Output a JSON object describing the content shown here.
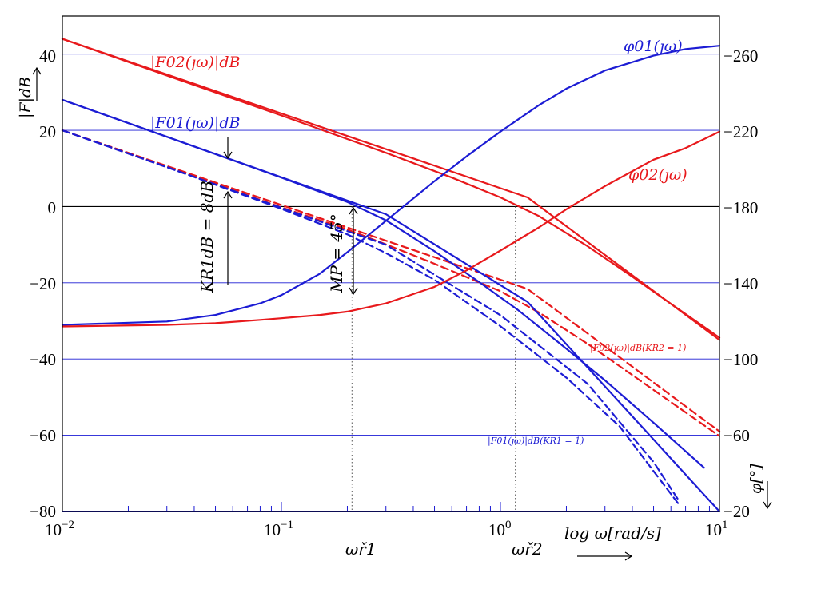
{
  "chart_data": {
    "type": "line",
    "x_scale": "log",
    "xlim": [
      0.01,
      10
    ],
    "ylim_left": [
      -80,
      50
    ],
    "ylim_right": [
      -20,
      280
    ],
    "right_axis_inverted": true,
    "grid": "horizontal",
    "x_ticks": [
      "10^-2",
      "10^-1",
      "10^0",
      "10^1"
    ],
    "x_tick_labels": [
      {
        "base": "10",
        "exp": "−2"
      },
      {
        "base": "10",
        "exp": "−1"
      },
      {
        "base": "10",
        "exp": "0"
      },
      {
        "base": "10",
        "exp": "1"
      }
    ],
    "left_ticks": [
      {
        "value": 40,
        "label": "40"
      },
      {
        "value": 20,
        "label": "20"
      },
      {
        "value": 0,
        "label": "0"
      },
      {
        "value": -20,
        "label": "−20"
      },
      {
        "value": -40,
        "label": "−40"
      },
      {
        "value": -60,
        "label": "−60"
      },
      {
        "value": -80,
        "label": "−80"
      }
    ],
    "right_ticks": [
      {
        "value": 260,
        "label": "−260"
      },
      {
        "value": 220,
        "label": "−220"
      },
      {
        "value": 180,
        "label": "−180"
      },
      {
        "value": 140,
        "label": "−140"
      },
      {
        "value": 100,
        "label": "−100"
      },
      {
        "value": 60,
        "label": "−60"
      },
      {
        "value": 20,
        "label": "−20"
      }
    ],
    "ylabel_left": "|F|dB",
    "ylabel_right": "φ[°]",
    "xlabel": "log ω[rad/s]",
    "series": [
      {
        "key": "F02_true",
        "axis": "left",
        "style": "solid",
        "color": "#e8191c",
        "x": [
          0.01,
          0.03,
          0.1,
          0.3,
          0.6,
          1.0,
          1.5,
          2.5,
          4,
          6,
          10
        ],
        "y": [
          44,
          34.4,
          23.9,
          14.1,
          7.6,
          2.4,
          -2.5,
          -10.4,
          -18.4,
          -25.5,
          -34.4
        ]
      },
      {
        "key": "F02_asym",
        "axis": "left",
        "style": "solid",
        "color": "#e8191c",
        "x": [
          0.01,
          1.33,
          10
        ],
        "y": [
          44,
          2.4,
          -35
        ]
      },
      {
        "key": "F02_dashed_true",
        "axis": "left",
        "style": "dashed",
        "color": "#e8191c",
        "x": [
          0.01,
          0.03,
          0.1,
          0.2,
          0.3,
          0.5,
          1.0,
          1.5,
          2.5,
          4,
          6,
          10
        ],
        "y": [
          20,
          10.4,
          -0.2,
          -6,
          -9.9,
          -15,
          -22.2,
          -27.8,
          -36,
          -44.2,
          -51.3,
          -60.2
        ]
      },
      {
        "key": "F02_dashed_asym",
        "axis": "left",
        "style": "dashed",
        "color": "#e8191c",
        "x": [
          0.01,
          1.33,
          10
        ],
        "y": [
          20,
          -21.6,
          -59
        ]
      },
      {
        "key": "F01_true",
        "axis": "left",
        "style": "solid",
        "color": "#1c1cd4",
        "x": [
          0.01,
          0.03,
          0.1,
          0.2,
          0.3,
          0.5,
          0.8,
          1.2,
          2,
          3,
          5,
          8.5
        ],
        "y": [
          28,
          18.3,
          7.6,
          1.2,
          -3.6,
          -11.7,
          -19.8,
          -27.1,
          -37.3,
          -45.6,
          -56.7,
          -68.5
        ]
      },
      {
        "key": "F01_asym",
        "axis": "left",
        "style": "solid",
        "color": "#1c1cd4",
        "x": [
          0.01,
          0.3,
          1.33,
          10
        ],
        "y": [
          28,
          -2,
          -25,
          -80
        ]
      },
      {
        "key": "F01_dashed_true",
        "axis": "left",
        "style": "dashed",
        "color": "#1c1cd4",
        "x": [
          0.01,
          0.03,
          0.1,
          0.2,
          0.3,
          0.5,
          1.0,
          2.0,
          3.5,
          6.5
        ],
        "y": [
          20,
          10.4,
          -0.6,
          -7.3,
          -12.2,
          -19.2,
          -31.4,
          -44.9,
          -57.7,
          -78
        ]
      },
      {
        "key": "F01_dashed_asym",
        "axis": "left",
        "style": "dashed",
        "color": "#1c1cd4",
        "x": [
          0.01,
          0.3,
          1.0,
          2.5,
          3.5,
          5.0,
          6.5
        ],
        "y": [
          20,
          -10,
          -28.5,
          -46.5,
          -56.5,
          -67,
          -77
        ]
      },
      {
        "key": "phi01",
        "axis": "right",
        "style": "solid",
        "color": "#1c1cd4",
        "x": [
          0.01,
          0.03,
          0.05,
          0.08,
          0.1,
          0.15,
          0.2,
          0.3,
          0.5,
          0.7,
          1,
          1.5,
          2,
          3,
          5,
          7,
          10
        ],
        "y": [
          93,
          95,
          99,
          106,
          111,
          124,
          137,
          156,
          180,
          195,
          210,
          226,
          236,
          247,
          256,
          260,
          262
        ]
      },
      {
        "key": "phi02",
        "axis": "right",
        "style": "solid",
        "color": "#e8191c",
        "x": [
          0.01,
          0.03,
          0.05,
          0.08,
          0.1,
          0.15,
          0.2,
          0.3,
          0.5,
          0.7,
          1,
          1.5,
          2,
          3,
          5,
          7,
          10
        ],
        "y": [
          92,
          93,
          94,
          96,
          97,
          99,
          101,
          106,
          116,
          126,
          138,
          152,
          163,
          177,
          193,
          200,
          210
        ]
      }
    ],
    "vlines": [
      0.21,
      1.17
    ],
    "labels": {
      "F02": "|F02(ȷω)|dB",
      "F01": "|F01(ȷω)|dB",
      "phi01": "φ01(ȷω)",
      "phi02": "φ02(ȷω)",
      "F02_K": "|F02(ȷω)|dB(KR2 = 1)",
      "F01_K": "|F01(ȷω)|dB(KR1 = 1)",
      "KR1": "KR1dB = 8dB",
      "MP": "MP = 45°",
      "wr1": "ωř1",
      "wr2": "ωř2"
    },
    "colors": {
      "red": "#e8191c",
      "blue": "#1c1cd4",
      "grid": "#1c1cd4"
    }
  }
}
